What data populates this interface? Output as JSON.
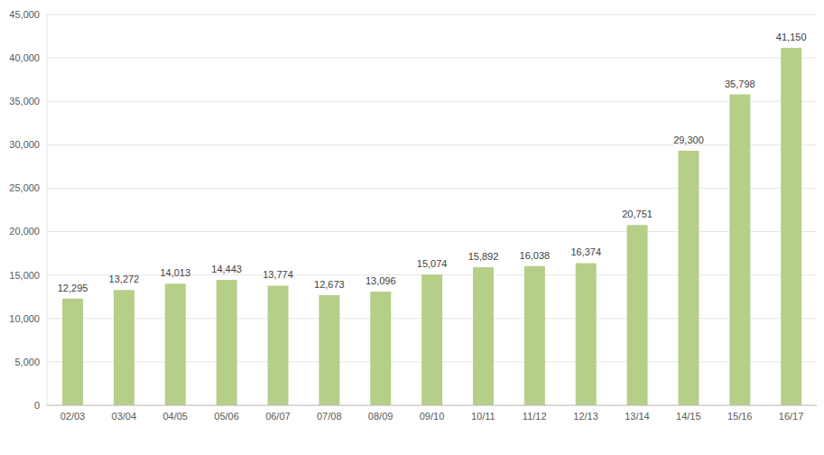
{
  "chart_data": {
    "type": "bar",
    "categories": [
      "02/03",
      "03/04",
      "04/05",
      "05/06",
      "06/07",
      "07/08",
      "08/09",
      "09/10",
      "10/11",
      "11/12",
      "12/13",
      "13/14",
      "14/15",
      "15/16",
      "16/17"
    ],
    "values": [
      12295,
      13272,
      14013,
      14443,
      13774,
      12673,
      13096,
      15074,
      15892,
      16038,
      16374,
      20751,
      29300,
      35798,
      41150
    ],
    "value_labels": [
      "12,295",
      "13,272",
      "14,013",
      "14,443",
      "13,774",
      "12,673",
      "13,096",
      "15,074",
      "15,892",
      "16,038",
      "16,374",
      "20,751",
      "29,300",
      "35,798",
      "41,150"
    ],
    "color": "#b5cf88",
    "ylim": [
      0,
      45000
    ],
    "yticks": [
      0,
      {
        "value": 5000,
        "label": "5,000"
      },
      {
        "value": 10000,
        "label": "10,000"
      },
      {
        "value": 15000,
        "label": "15,000"
      },
      {
        "value": 20000,
        "label": "20,000"
      },
      {
        "value": 25000,
        "label": "25,000"
      },
      {
        "value": 30000,
        "label": "30,000"
      },
      {
        "value": 35000,
        "label": "35,000"
      },
      {
        "value": 40000,
        "label": "40,000"
      },
      {
        "value": 45000,
        "label": "45,000"
      }
    ],
    "grid": true,
    "data_labels": true
  }
}
